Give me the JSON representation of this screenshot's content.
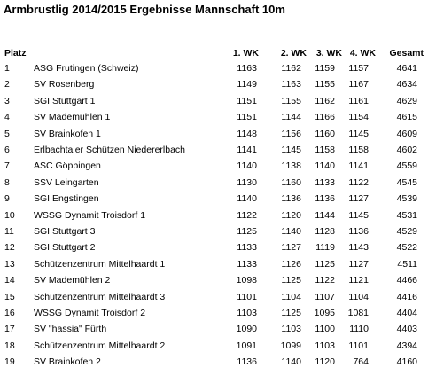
{
  "title": "Armbrustlig 2014/2015 Ergebnisse Mannschaft 10m",
  "table": {
    "header": [
      "Platz",
      "1. WK",
      "2. WK",
      "3. WK",
      "4. WK",
      "Gesamt"
    ],
    "rows": [
      [
        1,
        "ASG Frutingen (Schweiz)",
        1163,
        1162,
        1159,
        1157,
        4641
      ],
      [
        2,
        "SV Rosenberg",
        1149,
        1163,
        1155,
        1167,
        4634
      ],
      [
        3,
        "SGI Stuttgart 1",
        1151,
        1155,
        1162,
        1161,
        4629
      ],
      [
        4,
        "SV Mademühlen 1",
        1151,
        1144,
        1166,
        1154,
        4615
      ],
      [
        5,
        "SV Brainkofen 1",
        1148,
        1156,
        1160,
        1145,
        4609
      ],
      [
        6,
        "Erlbachtaler Schützen Niedererlbach",
        1141,
        1145,
        1158,
        1158,
        4602
      ],
      [
        7,
        "ASC Göppingen",
        1140,
        1138,
        1140,
        1141,
        4559
      ],
      [
        8,
        "SSV Leingarten",
        1130,
        1160,
        1133,
        1122,
        4545
      ],
      [
        9,
        "SGI Engstingen",
        1140,
        1136,
        1136,
        1127,
        4539
      ],
      [
        10,
        "WSSG Dynamit Troisdorf 1",
        1122,
        1120,
        1144,
        1145,
        4531
      ],
      [
        11,
        "SGI Stuttgart 3",
        1125,
        1140,
        1128,
        1136,
        4529
      ],
      [
        12,
        "SGI Stuttgart 2",
        1133,
        1127,
        1119,
        1143,
        4522
      ],
      [
        13,
        "Schützenzentrum Mittelhaardt 1",
        1133,
        1126,
        1125,
        1127,
        4511
      ],
      [
        14,
        "SV Mademühlen 2",
        1098,
        1125,
        1122,
        1121,
        4466
      ],
      [
        15,
        "Schützenzentrum Mittelhaardt 3",
        1101,
        1104,
        1107,
        1104,
        4416
      ],
      [
        16,
        "WSSG Dynamit Troisdorf 2",
        1103,
        1125,
        1095,
        1081,
        4404
      ],
      [
        17,
        "SV \"hassia\" Fürth",
        1090,
        1103,
        1100,
        1110,
        4403
      ],
      [
        18,
        "Schützenzentrum Mittelhaardt 2",
        1091,
        1099,
        1103,
        1101,
        4394
      ],
      [
        19,
        "SV Brainkofen 2",
        1136,
        1140,
        1120,
        764,
        4160
      ]
    ]
  }
}
